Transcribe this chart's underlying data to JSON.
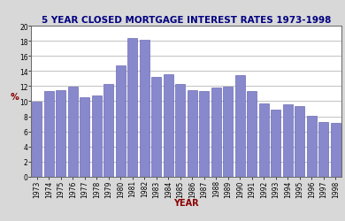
{
  "title": "5 YEAR CLOSED MORTGAGE INTEREST RATES 1973-1998",
  "xlabel": "YEAR",
  "ylabel": "%",
  "years": [
    1973,
    1974,
    1975,
    1976,
    1977,
    1978,
    1979,
    1980,
    1981,
    1982,
    1983,
    1984,
    1985,
    1986,
    1987,
    1988,
    1989,
    1990,
    1991,
    1992,
    1993,
    1994,
    1995,
    1996,
    1997,
    1998
  ],
  "values": [
    9.9,
    11.4,
    11.5,
    11.9,
    10.5,
    10.7,
    12.3,
    14.7,
    18.4,
    18.1,
    13.2,
    13.6,
    12.3,
    11.5,
    11.4,
    11.8,
    11.9,
    13.4,
    11.3,
    9.7,
    8.9,
    9.6,
    9.4,
    8.1,
    7.3,
    7.1
  ],
  "bar_color": "#8888cc",
  "bar_edge_color": "#5555aa",
  "background_color": "#d8d8d8",
  "plot_background": "#ffffff",
  "title_color": "#000080",
  "xlabel_color": "#8b0000",
  "ylabel_color": "#8b0000",
  "ylim": [
    0,
    20
  ],
  "yticks": [
    0,
    2,
    4,
    6,
    8,
    10,
    12,
    14,
    16,
    18,
    20
  ],
  "grid": true,
  "title_fontsize": 7.5,
  "label_fontsize": 7,
  "tick_fontsize": 5.5
}
